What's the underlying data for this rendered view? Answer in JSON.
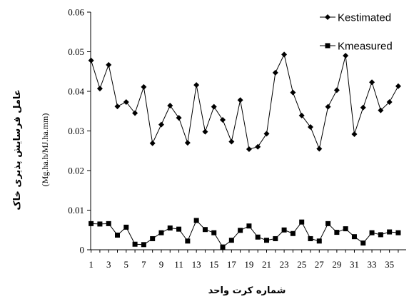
{
  "chart_data": {
    "type": "line",
    "title": "",
    "xlabel": "شماره کرت واحد",
    "ylabel": "عامل فرسایش پذیری خاک",
    "ylabel_unit": "(Mg.ha.h/MJ.ha.mm)",
    "xlim": [
      1,
      36
    ],
    "ylim": [
      0,
      0.06
    ],
    "y_ticks": [
      "0",
      "0.01",
      "0.02",
      "0.03",
      "0.04",
      "0.05",
      "0.06"
    ],
    "x_ticks": [
      "1",
      "3",
      "5",
      "7",
      "9",
      "11",
      "13",
      "15",
      "17",
      "19",
      "21",
      "23",
      "25",
      "27",
      "29",
      "31",
      "33",
      "35"
    ],
    "grid": false,
    "legend": "top-right",
    "x": [
      1,
      2,
      3,
      4,
      5,
      6,
      7,
      8,
      9,
      10,
      11,
      12,
      13,
      14,
      15,
      16,
      17,
      18,
      19,
      20,
      21,
      22,
      23,
      24,
      25,
      26,
      27,
      28,
      29,
      30,
      31,
      32,
      33,
      34,
      35,
      36
    ],
    "series": [
      {
        "name": "Kestimated",
        "marker": "diamond",
        "color": "#000000",
        "values": [
          0.0478,
          0.0407,
          0.0467,
          0.0362,
          0.0373,
          0.0345,
          0.0411,
          0.0269,
          0.0316,
          0.0364,
          0.0333,
          0.027,
          0.0416,
          0.0298,
          0.0361,
          0.0328,
          0.0273,
          0.0378,
          0.0254,
          0.026,
          0.0293,
          0.0447,
          0.0493,
          0.0397,
          0.0339,
          0.031,
          0.0255,
          0.0361,
          0.0403,
          0.049,
          0.0292,
          0.0359,
          0.0423,
          0.0352,
          0.0373,
          0.0413
        ]
      },
      {
        "name": "Kmeasured",
        "marker": "square",
        "color": "#000000",
        "values": [
          0.0066,
          0.0065,
          0.0066,
          0.0037,
          0.0057,
          0.0014,
          0.0013,
          0.0028,
          0.0043,
          0.0055,
          0.0052,
          0.0022,
          0.0074,
          0.0051,
          0.0043,
          0.0007,
          0.0024,
          0.0049,
          0.006,
          0.0032,
          0.0024,
          0.0028,
          0.005,
          0.0041,
          0.007,
          0.0028,
          0.0022,
          0.0066,
          0.0044,
          0.0053,
          0.0033,
          0.0017,
          0.0043,
          0.0038,
          0.0045,
          0.0043
        ]
      }
    ]
  }
}
